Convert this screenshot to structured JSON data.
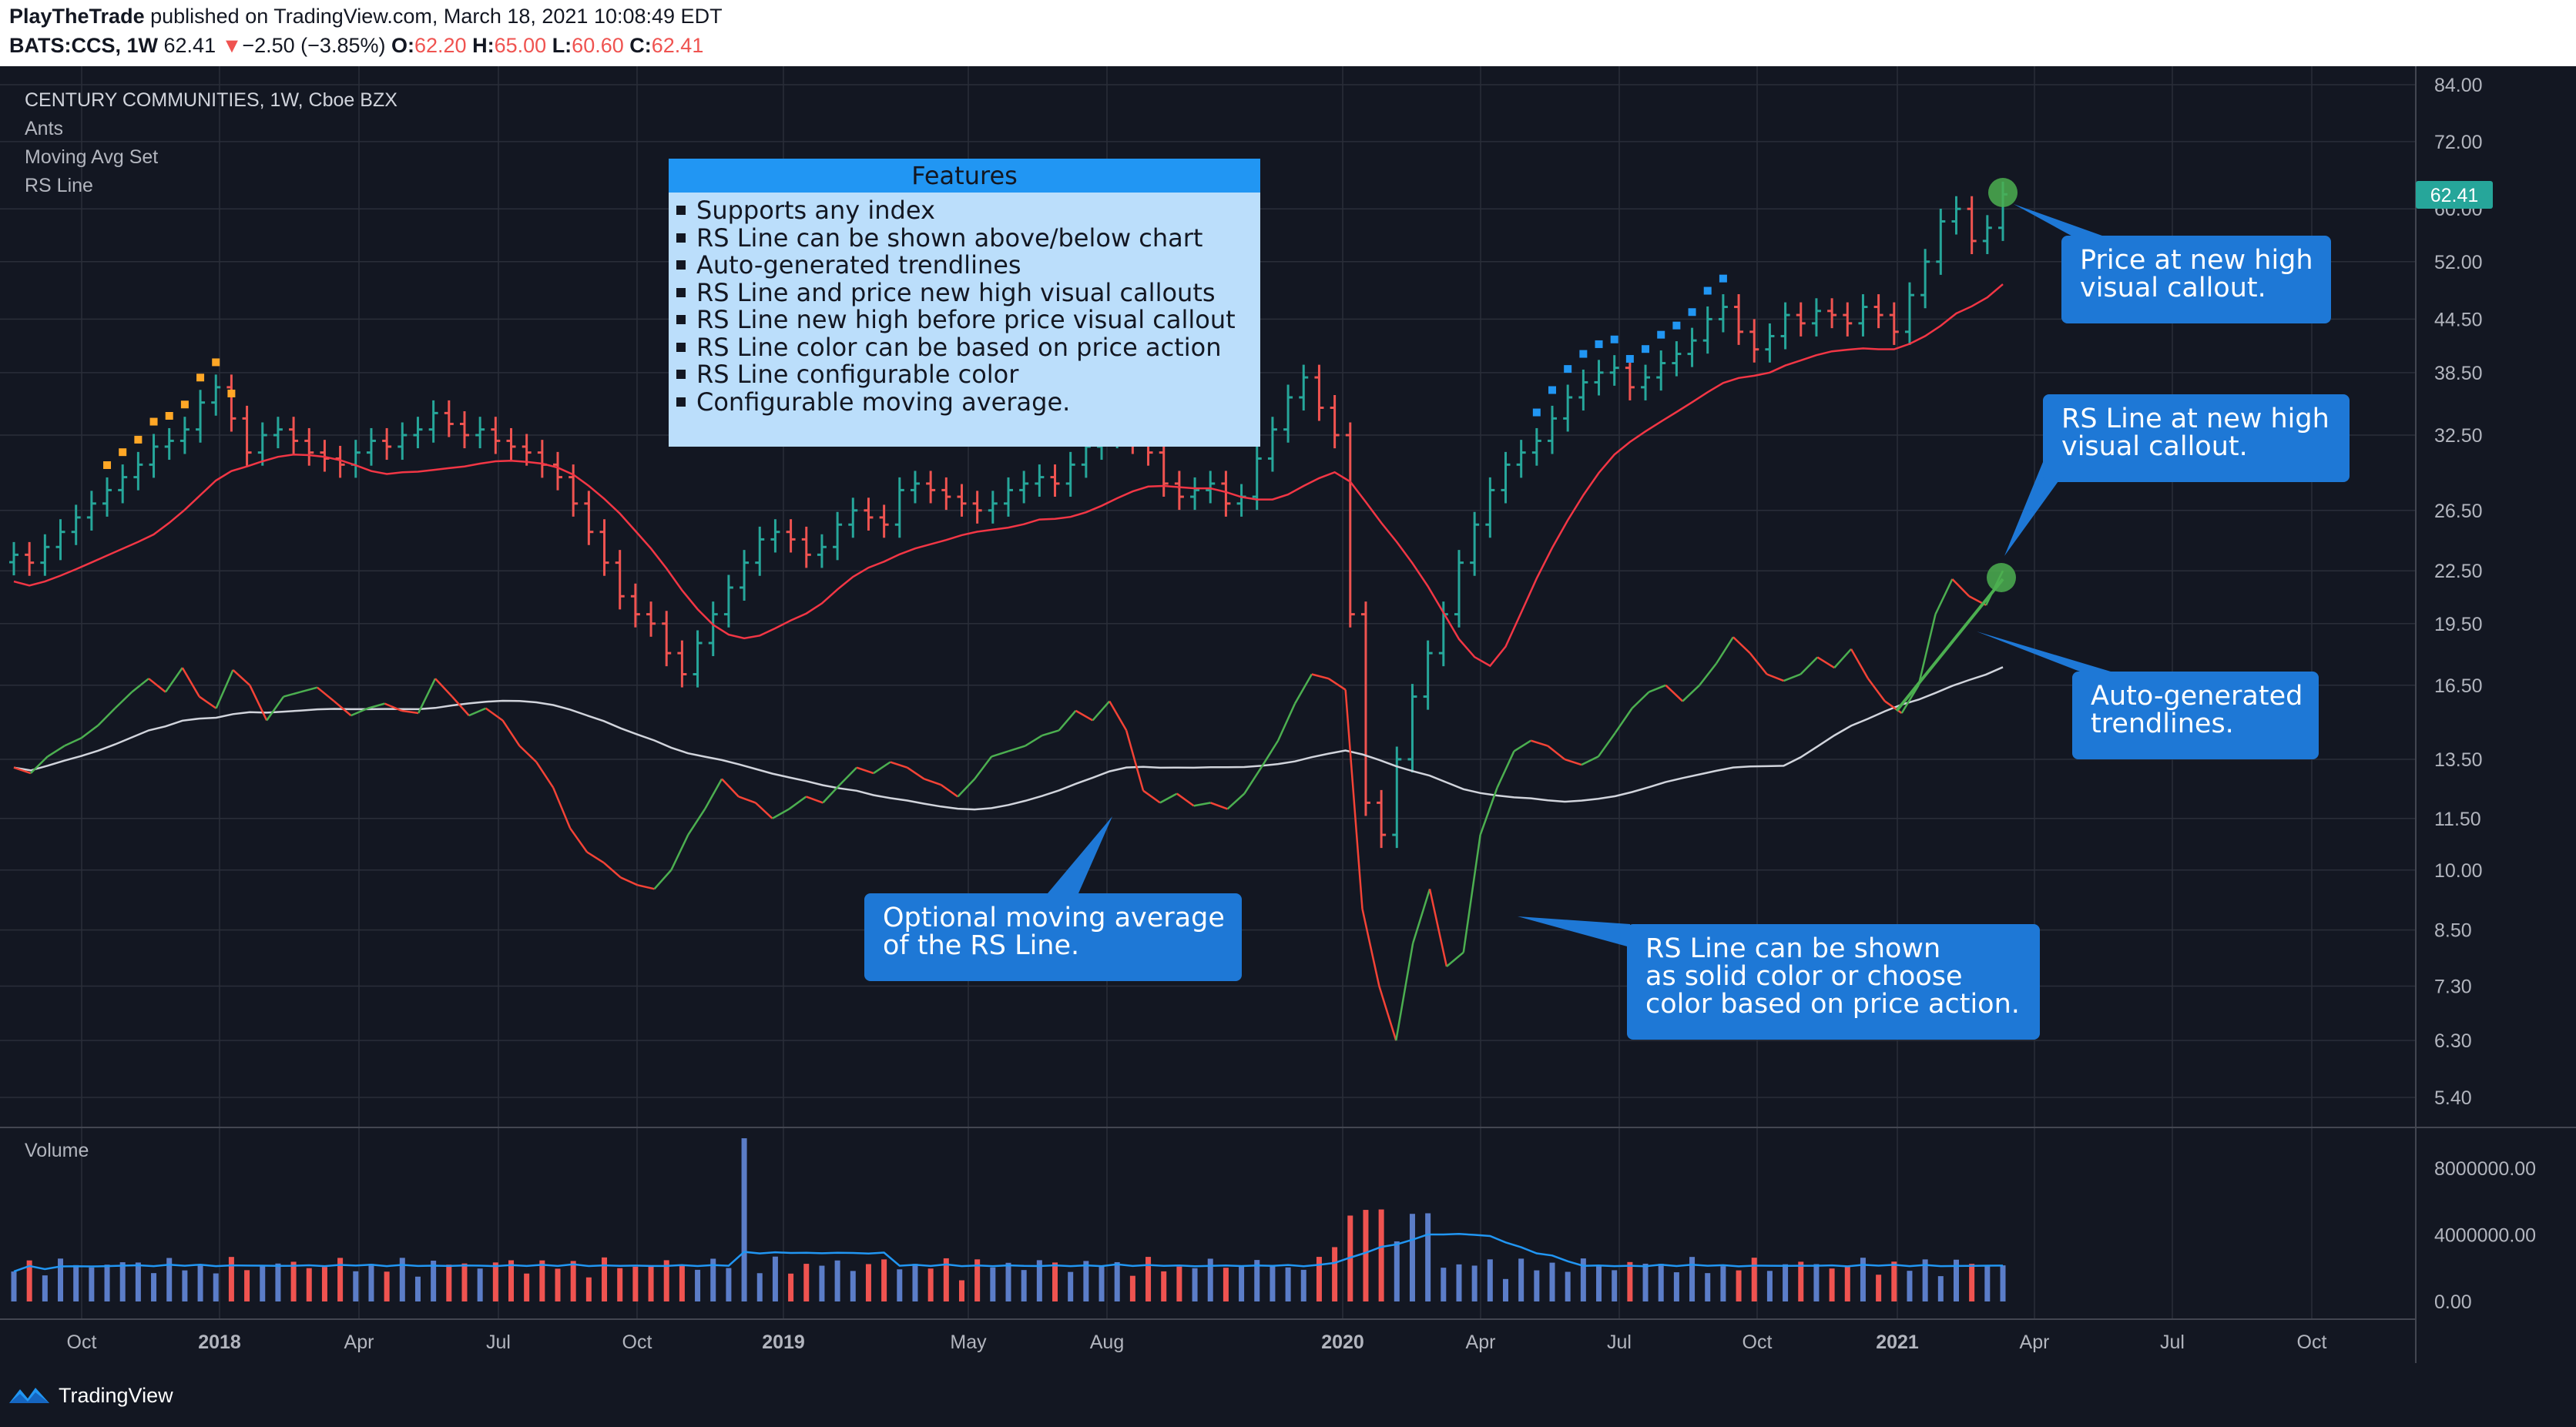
{
  "header": {
    "author": "PlayTheTrade",
    "published_text": " published on TradingView.com, March 18, 2021 10:08:49 EDT",
    "symbol": "BATS:CCS, 1W",
    "last": "62.41",
    "change": "−2.50 (−3.85%)",
    "open_label": "O:",
    "open": "62.20",
    "high_label": "H:",
    "high": "65.00",
    "low_label": "L:",
    "low": "60.60",
    "close_label": "C:",
    "close": "62.41"
  },
  "chart_title": "CENTURY COMMUNITIES, 1W, Cboe BZX",
  "indicators": [
    "Ants",
    "Moving Avg Set",
    "RS Line"
  ],
  "volume_label": "Volume",
  "features_box": {
    "title": "Features",
    "items": [
      "Supports any index",
      "RS Line can be shown above/below chart",
      "Auto-generated trendlines",
      "RS Line and price new high visual callouts",
      "RS Line new high before price visual callout",
      "RS Line color can be based on price action",
      "RS Line configurable color",
      "Configurable moving average."
    ]
  },
  "callouts": {
    "price_high": "Price at new high\nvisual callout.",
    "rs_high": "RS Line at new high\nvisual callout.",
    "trendlines": "Auto-generated\ntrendlines.",
    "moving_avg": "Optional moving average\nof the RS Line.",
    "rs_color": "RS Line can be shown\nas solid color or choose\ncolor based on price action."
  },
  "price_tag": "62.41",
  "branding": "TradingView",
  "colors": {
    "background": "#131722",
    "up": "#26a69a",
    "down": "#ef5350",
    "ma": "#f23645",
    "rs_up": "#4caf50",
    "rs_down": "#f44336",
    "rs_ma": "#d1d4dc",
    "ants": "#ffa726",
    "new_high_dots": "#2196f3",
    "callout": "#1e78d6",
    "highlight": "#4caf50",
    "volume_up": "#5b7dc8",
    "volume_down": "#ef5350",
    "volume_ma": "#2196f3"
  },
  "chart_data": {
    "type": "line",
    "x_ticks": [
      "Oct",
      "2018",
      "Apr",
      "Jul",
      "Oct",
      "2019",
      "May",
      "Aug",
      "2020",
      "Apr",
      "Jul",
      "Oct",
      "2021",
      "Apr",
      "Jul",
      "Oct"
    ],
    "x_ticks_bold": [
      "2018",
      "2019",
      "2020",
      "2021"
    ],
    "y_ticks": [
      "84.00",
      "72.00",
      "60.00",
      "52.00",
      "44.50",
      "38.50",
      "32.50",
      "26.50",
      "22.50",
      "19.50",
      "16.50",
      "13.50",
      "11.50",
      "10.00",
      "8.50",
      "7.30",
      "6.30",
      "5.40"
    ],
    "y_scale": "log",
    "volume_ticks": [
      "8000000.00",
      "4000000.00",
      "0.00"
    ],
    "price_weekly_close": [
      23.5,
      23.0,
      24.0,
      25.0,
      26.0,
      27.0,
      28.0,
      29.0,
      30.0,
      31.5,
      32.0,
      33.0,
      35.5,
      37.0,
      34.0,
      31.0,
      32.5,
      33.0,
      32.0,
      31.0,
      30.5,
      30.0,
      31.0,
      32.0,
      31.5,
      32.5,
      33.0,
      34.5,
      33.5,
      32.5,
      33.0,
      32.0,
      31.5,
      31.0,
      30.0,
      29.0,
      27.0,
      25.0,
      23.0,
      21.0,
      20.0,
      19.5,
      18.0,
      17.0,
      18.5,
      20.0,
      21.5,
      23.0,
      24.5,
      25.0,
      24.5,
      23.5,
      24.0,
      25.5,
      26.5,
      26.0,
      25.5,
      28.0,
      28.5,
      28.0,
      27.5,
      27.0,
      26.5,
      27.0,
      28.0,
      28.5,
      29.0,
      28.5,
      30.0,
      31.5,
      32.5,
      33.0,
      32.0,
      31.0,
      28.5,
      27.5,
      28.0,
      28.5,
      27.0,
      27.5,
      30.5,
      33.0,
      36.0,
      38.0,
      35.0,
      32.5,
      20.0,
      12.0,
      11.0,
      13.5,
      16.0,
      18.0,
      20.0,
      23.0,
      25.5,
      28.0,
      30.0,
      31.0,
      32.0,
      34.0,
      36.0,
      37.5,
      38.5,
      39.0,
      37.0,
      38.0,
      39.5,
      40.5,
      42.0,
      44.5,
      46.0,
      43.0,
      41.0,
      42.5,
      45.0,
      44.0,
      45.5,
      45.0,
      44.0,
      46.0,
      45.0,
      43.0,
      47.5,
      52.0,
      58.0,
      60.0,
      55.0,
      57.0,
      62.41
    ],
    "rs_line": [
      13.2,
      13.0,
      13.6,
      14.0,
      14.3,
      14.8,
      15.5,
      16.2,
      16.8,
      16.2,
      17.3,
      16.0,
      15.5,
      17.2,
      16.5,
      15.0,
      16.0,
      16.2,
      16.4,
      15.8,
      15.2,
      15.5,
      15.7,
      15.4,
      15.3,
      16.8,
      16.0,
      15.2,
      15.5,
      15.0,
      14.0,
      13.4,
      12.5,
      11.2,
      10.5,
      10.2,
      9.8,
      9.6,
      9.5,
      10.0,
      11.0,
      11.8,
      12.8,
      12.2,
      12.0,
      11.5,
      11.8,
      12.2,
      12.0,
      12.6,
      13.2,
      13.0,
      13.4,
      13.2,
      12.8,
      12.6,
      12.2,
      12.8,
      13.6,
      13.8,
      14.0,
      14.4,
      14.6,
      15.4,
      15.0,
      15.8,
      14.6,
      12.4,
      12.0,
      12.3,
      11.9,
      12.0,
      11.8,
      12.3,
      13.2,
      14.2,
      15.7,
      17.0,
      16.8,
      16.3,
      9.0,
      7.3,
      6.3,
      8.2,
      9.5,
      7.7,
      8.0,
      11.0,
      12.5,
      13.8,
      14.2,
      14.0,
      13.5,
      13.3,
      13.6,
      14.5,
      15.5,
      16.2,
      16.5,
      15.8,
      16.5,
      17.5,
      18.8,
      18.0,
      17.0,
      16.7,
      17.0,
      17.8,
      17.3,
      18.2,
      16.8,
      15.8,
      15.3,
      16.5,
      20.0,
      22.0,
      21.0,
      20.5,
      22.5
    ],
    "rs_moving_average_start_end": [
      14.0,
      15.8
    ],
    "notes_y": "RS Line plotted on same log scale as price",
    "volume_max_approx": 9800000,
    "events": [
      "Price new high callout near Mar 2021 at 62.41",
      "RS Line new high callout near Mar 2021",
      "RS trendline from Jan 2021 low to Mar 2021 high"
    ]
  }
}
